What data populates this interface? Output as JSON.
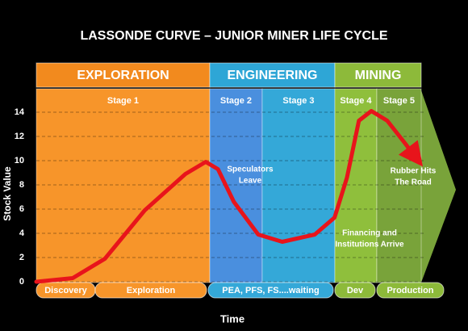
{
  "chart_data": {
    "type": "line",
    "title": "LASSONDE CURVE – JUNIOR MINER LIFE CYCLE",
    "y_label": "Stock Value",
    "x_label": "Time",
    "ylim": [
      0,
      14
    ],
    "yticks": [
      0,
      2,
      4,
      6,
      8,
      10,
      12,
      14
    ],
    "xlim": [
      0,
      100
    ],
    "grid": true,
    "phases": [
      {
        "name": "EXPLORATION",
        "color": "#f28a1e"
      },
      {
        "name": "ENGINEERING",
        "color": "#2ea6d6"
      },
      {
        "name": "MINING",
        "color": "#8dba3a"
      }
    ],
    "stages": [
      {
        "name": "Stage 1",
        "color": "#f7952a"
      },
      {
        "name": "Stage 2",
        "color": "#4a8fde"
      },
      {
        "name": "Stage 3",
        "color": "#34a8d8"
      },
      {
        "name": "Stage 4",
        "color": "#8fbf3c"
      },
      {
        "name": "Stage 5",
        "color": "#79a33a"
      }
    ],
    "periods": [
      "Discovery",
      "Exploration",
      "PEA, PFS, FS....waiting",
      "Dev",
      "Production"
    ],
    "annotations": [
      [
        "Speculators",
        "Leave"
      ],
      [
        "Financing and",
        "Institutions Arrive"
      ],
      [
        "Rubber Hits",
        "The Road"
      ]
    ],
    "series": [
      {
        "color": "#e8141b",
        "x": [
          0,
          9.4,
          17.7,
          28,
          38.5,
          43.75,
          46.9,
          51,
          57.3,
          63.5,
          71.9,
          77,
          80.2,
          83.3,
          86.5,
          90.6,
          94.8,
          97.9
        ],
        "values": [
          0,
          0.3,
          1.9,
          5.9,
          8.9,
          9.9,
          9.3,
          6.6,
          3.9,
          3.3,
          3.9,
          5.3,
          8.6,
          13.3,
          14.1,
          13.3,
          11.6,
          10.3
        ]
      }
    ]
  }
}
